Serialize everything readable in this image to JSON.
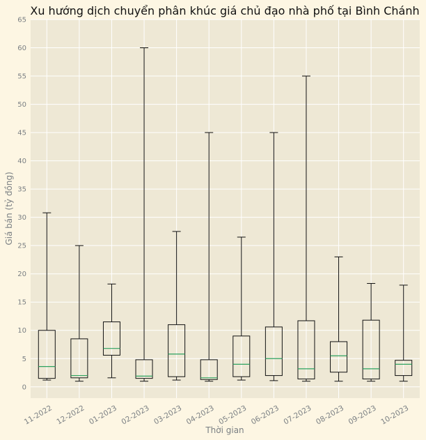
{
  "chart_data": {
    "type": "box",
    "title": "Xu hướng dịch chuyển phân khúc giá chủ đạo nhà phố tại Bình Chánh",
    "xlabel": "Thời gian",
    "ylabel": "Giá bán (tỷ đồng)",
    "ylim": [
      -2,
      65
    ],
    "yticks": [
      0,
      5,
      10,
      15,
      20,
      25,
      30,
      35,
      40,
      45,
      50,
      55,
      60,
      65
    ],
    "grid": true,
    "categories": [
      "11-2022",
      "12-2022",
      "01-2023",
      "02-2023",
      "03-2023",
      "04-2023",
      "05-2023",
      "06-2023",
      "07-2023",
      "08-2023",
      "09-2023",
      "10-2023"
    ],
    "boxes": [
      {
        "min": 1.2,
        "q1": 1.5,
        "median": 3.6,
        "q3": 10.0,
        "max": 30.8
      },
      {
        "min": 1.0,
        "q1": 1.6,
        "median": 2.0,
        "q3": 8.5,
        "max": 25.0
      },
      {
        "min": 1.6,
        "q1": 5.6,
        "median": 6.8,
        "q3": 11.5,
        "max": 18.2
      },
      {
        "min": 1.0,
        "q1": 1.5,
        "median": 1.9,
        "q3": 4.8,
        "max": 60.0
      },
      {
        "min": 1.2,
        "q1": 1.8,
        "median": 5.8,
        "q3": 11.0,
        "max": 27.5
      },
      {
        "min": 1.0,
        "q1": 1.3,
        "median": 1.6,
        "q3": 4.8,
        "max": 45.0
      },
      {
        "min": 1.2,
        "q1": 1.8,
        "median": 4.0,
        "q3": 9.0,
        "max": 26.5
      },
      {
        "min": 1.1,
        "q1": 2.0,
        "median": 5.0,
        "q3": 10.6,
        "max": 45.0
      },
      {
        "min": 1.0,
        "q1": 1.4,
        "median": 3.2,
        "q3": 11.7,
        "max": 55.0
      },
      {
        "min": 1.0,
        "q1": 2.6,
        "median": 5.5,
        "q3": 8.0,
        "max": 23.0
      },
      {
        "min": 1.0,
        "q1": 1.4,
        "median": 3.2,
        "q3": 11.8,
        "max": 18.3
      },
      {
        "min": 1.0,
        "q1": 2.0,
        "median": 4.0,
        "q3": 4.7,
        "max": 18.0
      }
    ],
    "colors": {
      "plot_bg": "#eee8d5",
      "page_bg": "#fdf6e3",
      "median": "#2ca25f",
      "box": "#111111"
    }
  }
}
